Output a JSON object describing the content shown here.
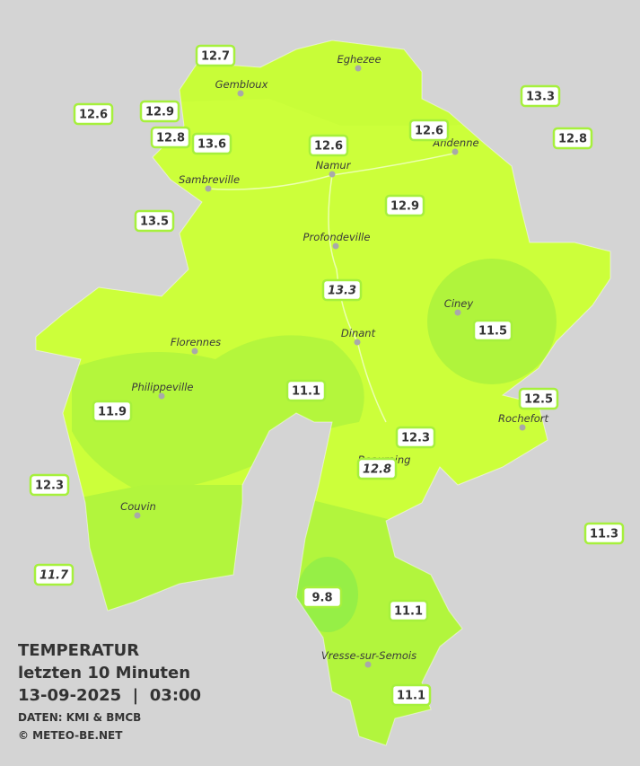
{
  "header": {
    "title": "TEMPERATUR",
    "subtitle": "letzten 10 Minuten",
    "datetime": "13-09-2025  |  03:00",
    "source": "DATEN: KMI & BMCB",
    "copyright": "© METEO-BE.NET"
  },
  "cities": [
    {
      "name": "Eghezee"
    },
    {
      "name": "Gembloux"
    },
    {
      "name": "Andenne"
    },
    {
      "name": "Namur"
    },
    {
      "name": "Sambreville"
    },
    {
      "name": "Profondeville"
    },
    {
      "name": "Ciney"
    },
    {
      "name": "Dinant"
    },
    {
      "name": "Florennes"
    },
    {
      "name": "Philippeville"
    },
    {
      "name": "Rochefort"
    },
    {
      "name": "Beauraing"
    },
    {
      "name": "Couvin"
    },
    {
      "name": "Vresse-sur-Semois"
    }
  ],
  "stations": [
    {
      "value": 12.7
    },
    {
      "value": 12.6
    },
    {
      "value": 12.9
    },
    {
      "value": 12.8
    },
    {
      "value": 13.6
    },
    {
      "value": 12.6
    },
    {
      "value": 12.6
    },
    {
      "value": 13.3
    },
    {
      "value": 12.8
    },
    {
      "value": 13.5
    },
    {
      "value": 12.9
    },
    {
      "value": 13.3,
      "italic": true
    },
    {
      "value": 11.5
    },
    {
      "value": 11.1
    },
    {
      "value": 11.9
    },
    {
      "value": 12.5
    },
    {
      "value": 12.3
    },
    {
      "value": 12.8,
      "italic": true
    },
    {
      "value": 12.3
    },
    {
      "value": 11.3
    },
    {
      "value": 11.7,
      "italic": true
    },
    {
      "value": 9.8
    },
    {
      "value": 11.1
    },
    {
      "value": 11.1
    }
  ]
}
